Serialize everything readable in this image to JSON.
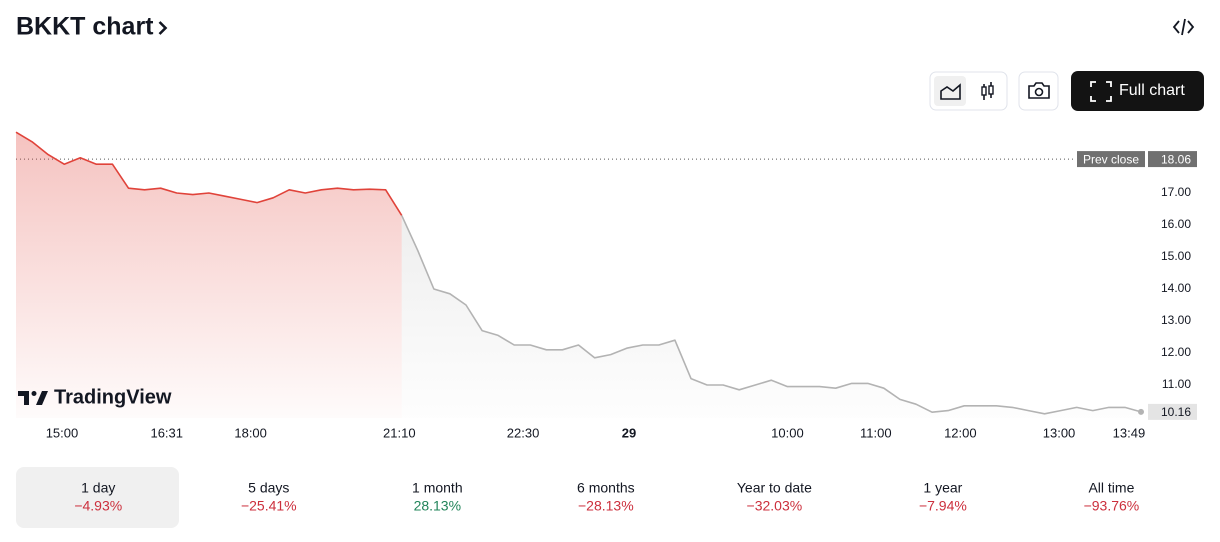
{
  "header": {
    "title": "BKKT chart"
  },
  "toolbar": {
    "full_chart": "Full chart"
  },
  "chart_data": {
    "type": "line",
    "brand": "TradingView",
    "xlim": [
      0,
      70
    ],
    "xticks": [
      {
        "value": 2.86,
        "label": "15:00"
      },
      {
        "value": 9.38,
        "label": "16:31"
      },
      {
        "value": 14.6,
        "label": "18:00"
      },
      {
        "value": 23.85,
        "label": "21:10"
      },
      {
        "value": 31.55,
        "label": "22:30"
      },
      {
        "value": 38.14,
        "label": "29"
      },
      {
        "value": 48.0,
        "label": "10:00"
      },
      {
        "value": 53.5,
        "label": "11:00"
      },
      {
        "value": 58.76,
        "label": "12:00"
      },
      {
        "value": 64.9,
        "label": "13:00"
      },
      {
        "value": 69.25,
        "label": "13:49"
      }
    ],
    "ylim": [
      9.85,
      19.25
    ],
    "yticks": [
      {
        "value": 11,
        "label": "11.00"
      },
      {
        "value": 12,
        "label": "12.00"
      },
      {
        "value": 13,
        "label": "13.00"
      },
      {
        "value": 14,
        "label": "14.00"
      },
      {
        "value": 15,
        "label": "15.00"
      },
      {
        "value": 16,
        "label": "16.00"
      },
      {
        "value": 17,
        "label": "17.00"
      }
    ],
    "prev_close": {
      "label": "Prev close",
      "value": 18.06
    },
    "series": [
      {
        "color": "#e0433a",
        "values": [
          18.9,
          18.6,
          18.2,
          17.9,
          18.1,
          17.9,
          17.9,
          17.15,
          17.1,
          17.15,
          17.0,
          16.95,
          17.0,
          16.9,
          16.8,
          16.7,
          16.85,
          17.1,
          17.0,
          17.1,
          17.15,
          17.1,
          17.12,
          17.1,
          16.3,
          null,
          null,
          null,
          null,
          null,
          null,
          null,
          null,
          null,
          null,
          null,
          null,
          null,
          null,
          null,
          null,
          null,
          null,
          null,
          null,
          null,
          null,
          null,
          null,
          null,
          null,
          null,
          null,
          null,
          null,
          null,
          null,
          null,
          null,
          null,
          null,
          null,
          null,
          null,
          null,
          null,
          null,
          null,
          null,
          null,
          null
        ]
      },
      {
        "color": "#b3b3b3",
        "values": [
          null,
          null,
          null,
          null,
          null,
          null,
          null,
          null,
          null,
          null,
          null,
          null,
          null,
          null,
          null,
          null,
          null,
          null,
          null,
          null,
          null,
          null,
          null,
          null,
          16.3,
          15.2,
          14.0,
          13.85,
          13.5,
          12.7,
          12.55,
          12.25,
          12.25,
          12.1,
          12.1,
          12.25,
          11.85,
          11.95,
          12.15,
          12.25,
          12.25,
          12.4,
          11.2,
          11.0,
          11.0,
          10.85,
          11.0,
          11.15,
          10.95,
          10.95,
          10.95,
          10.9,
          11.05,
          11.05,
          10.9,
          10.55,
          10.4,
          10.15,
          10.2,
          10.35,
          10.35,
          10.35,
          10.3,
          10.2,
          10.1,
          10.2,
          10.3,
          10.2,
          10.3,
          10.3,
          10.16
        ]
      }
    ]
  },
  "periods": {
    "selected": 0,
    "items": [
      {
        "label": "1 day",
        "change": "−4.93%",
        "color": "#cc2f3c"
      },
      {
        "label": "5 days",
        "change": "−25.41%",
        "color": "#cc2f3c"
      },
      {
        "label": "1 month",
        "change": "28.13%",
        "color": "#22845a"
      },
      {
        "label": "6 months",
        "change": "−28.13%",
        "color": "#cc2f3c"
      },
      {
        "label": "Year to date",
        "change": "−32.03%",
        "color": "#cc2f3c"
      },
      {
        "label": "1 year",
        "change": "−7.94%",
        "color": "#cc2f3c"
      },
      {
        "label": "All time",
        "change": "−93.76%",
        "color": "#cc2f3c"
      }
    ]
  }
}
